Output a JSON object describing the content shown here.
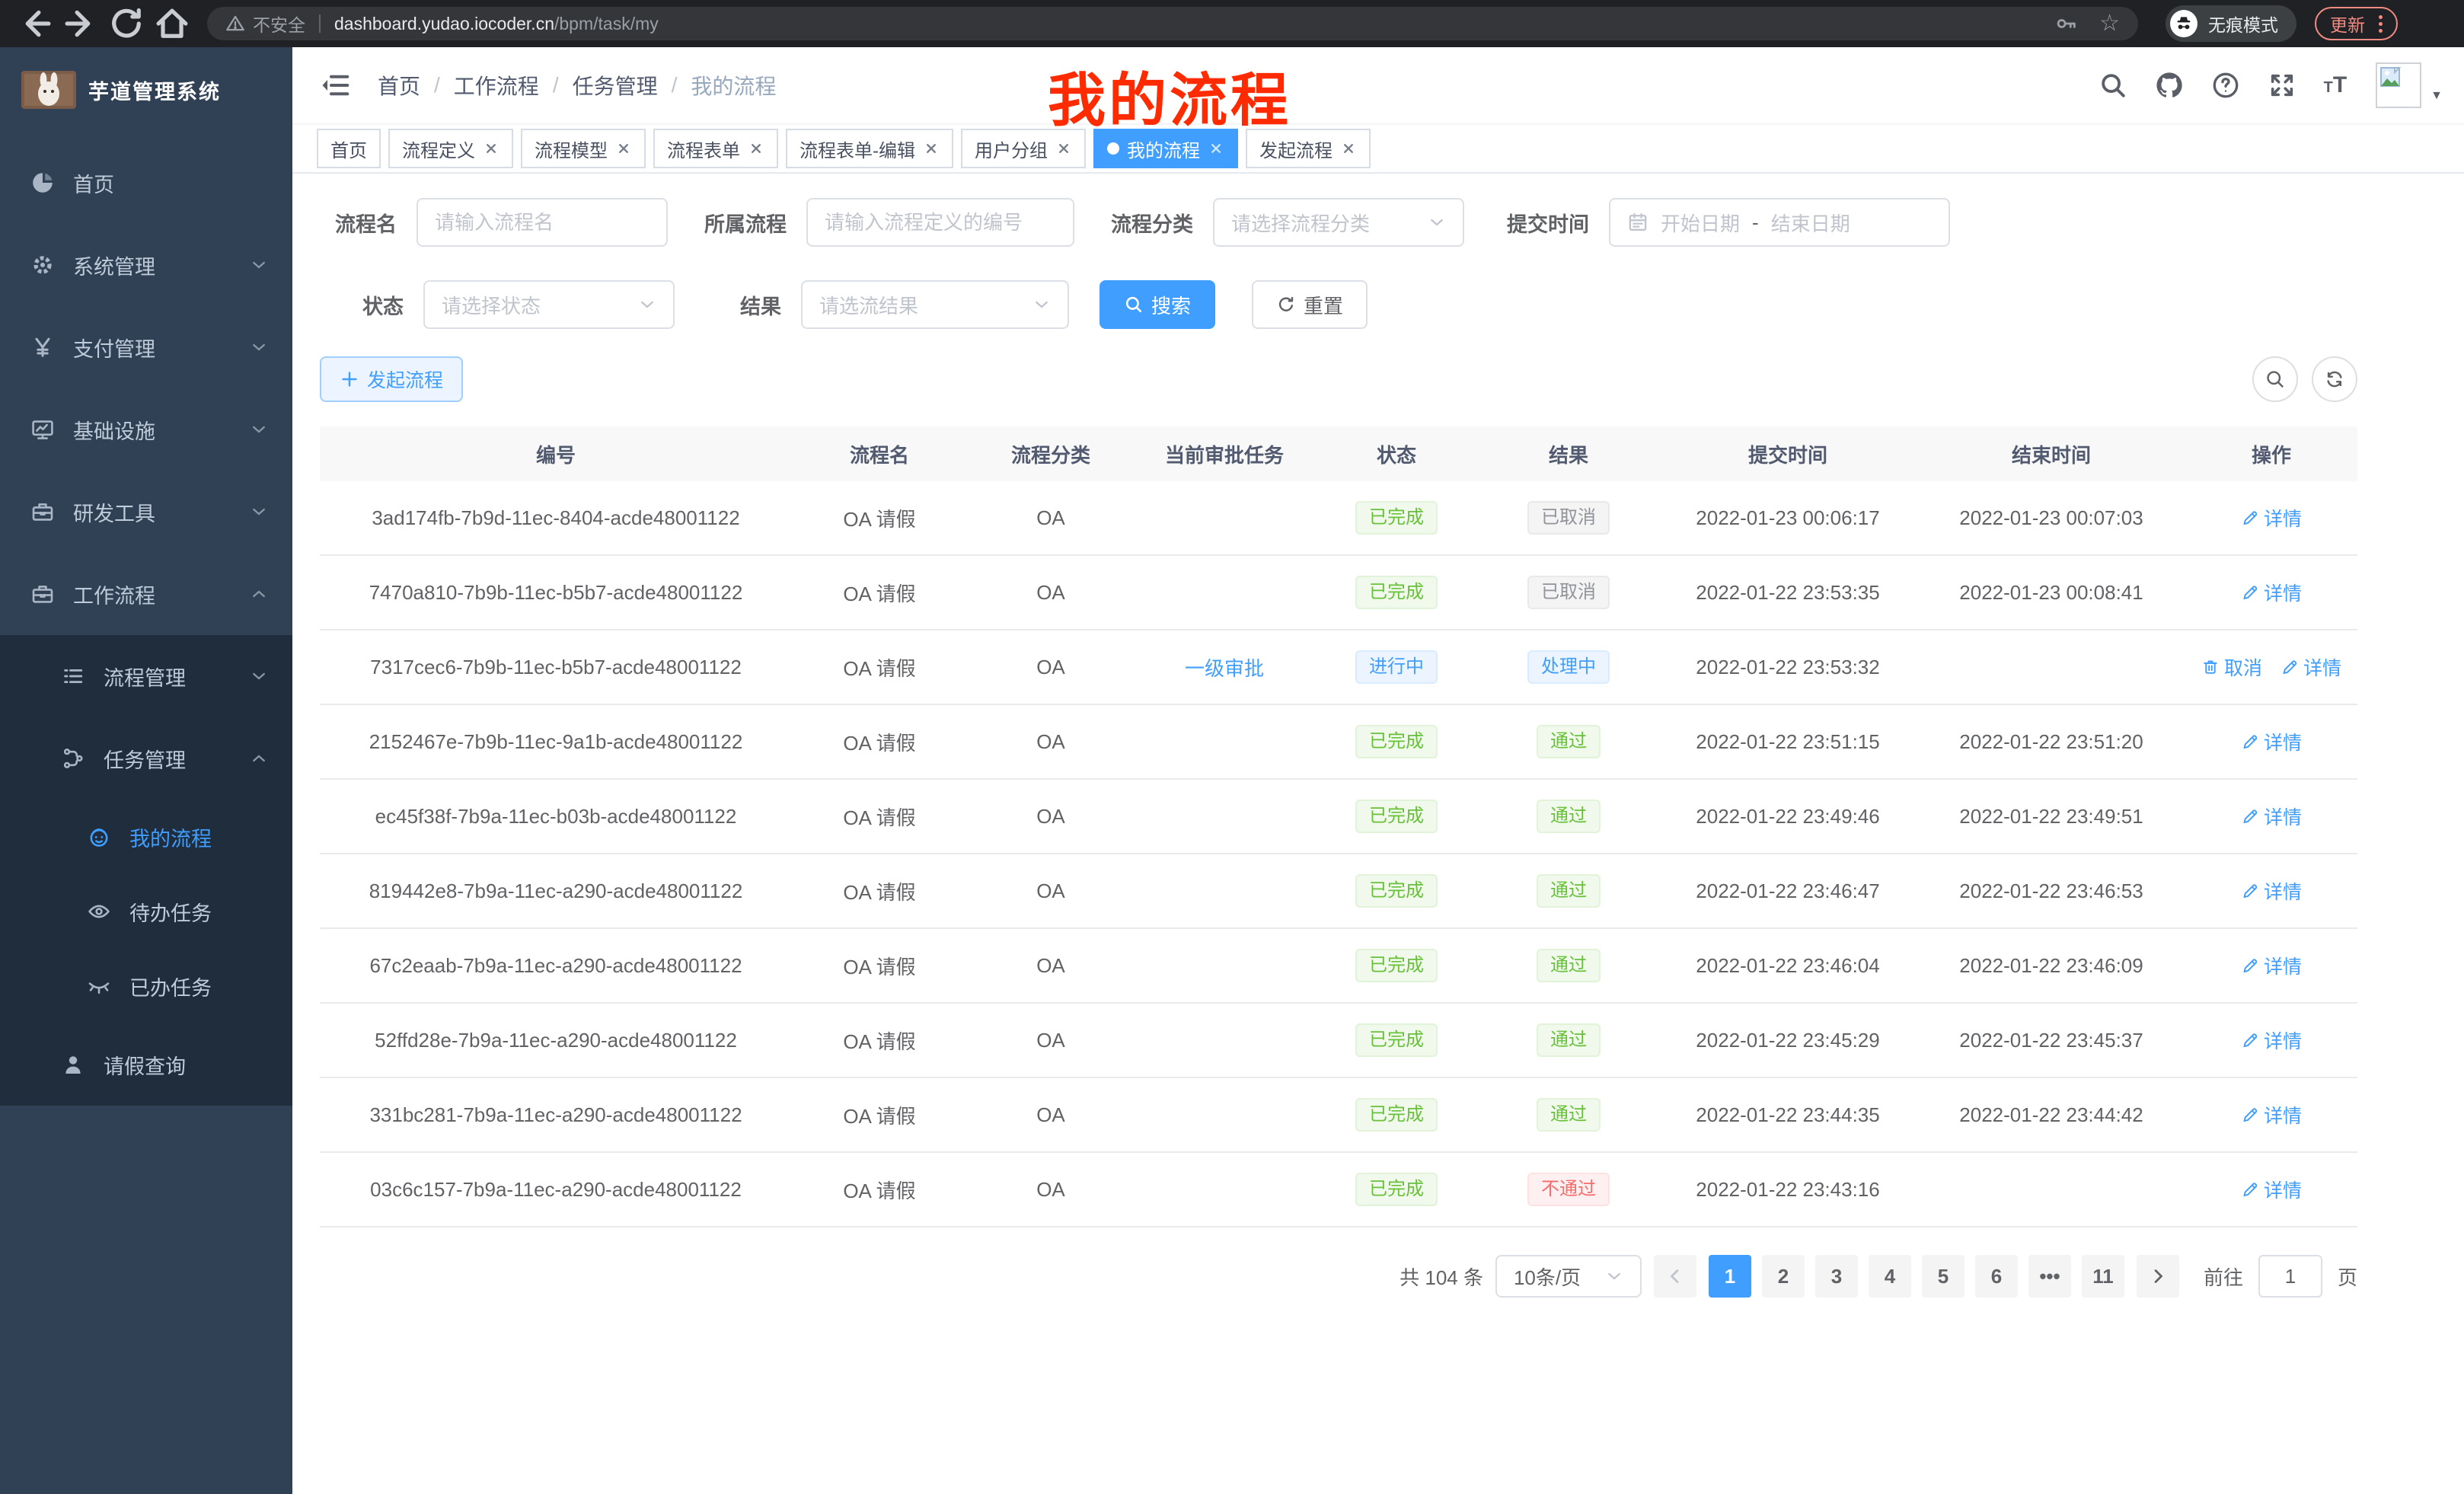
{
  "browser": {
    "security_text": "不安全",
    "url_host": "dashboard.yudao.iocoder.cn",
    "url_path": "/bpm/task/my",
    "incognito_label": "无痕模式",
    "update_label": "更新"
  },
  "sidebar": {
    "title": "芋道管理系统",
    "items": [
      {
        "label": "首页",
        "icon": "dashboard-icon",
        "level": 1,
        "chevron": null,
        "active": false,
        "in_submenu": false
      },
      {
        "label": "系统管理",
        "icon": "gear-icon",
        "level": 1,
        "chevron": "down",
        "active": false,
        "in_submenu": false
      },
      {
        "label": "支付管理",
        "icon": "yen-icon",
        "level": 1,
        "chevron": "down",
        "active": false,
        "in_submenu": false
      },
      {
        "label": "基础设施",
        "icon": "monitor-icon",
        "level": 1,
        "chevron": "down",
        "active": false,
        "in_submenu": false
      },
      {
        "label": "研发工具",
        "icon": "toolbox-icon",
        "level": 1,
        "chevron": "down",
        "active": false,
        "in_submenu": false
      },
      {
        "label": "工作流程",
        "icon": "toolbox-icon",
        "level": 1,
        "chevron": "up",
        "active": false,
        "in_submenu": false
      },
      {
        "label": "流程管理",
        "icon": "list-icon",
        "level": 2,
        "chevron": "down",
        "active": false,
        "in_submenu": true
      },
      {
        "label": "任务管理",
        "icon": "flow-icon",
        "level": 2,
        "chevron": "up",
        "active": false,
        "in_submenu": true
      },
      {
        "label": "我的流程",
        "icon": "face-icon",
        "level": 3,
        "chevron": null,
        "active": true,
        "in_submenu": true
      },
      {
        "label": "待办任务",
        "icon": "eye-icon",
        "level": 3,
        "chevron": null,
        "active": false,
        "in_submenu": true
      },
      {
        "label": "已办任务",
        "icon": "eye-closed-icon",
        "level": 3,
        "chevron": null,
        "active": false,
        "in_submenu": true
      },
      {
        "label": "请假查询",
        "icon": "user-icon",
        "level": 2,
        "chevron": null,
        "active": false,
        "in_submenu": true
      }
    ]
  },
  "header": {
    "breadcrumb": [
      "首页",
      "工作流程",
      "任务管理",
      "我的流程"
    ],
    "overlay_title": "我的流程"
  },
  "tabs": [
    {
      "label": "首页",
      "closable": false,
      "active": false
    },
    {
      "label": "流程定义",
      "closable": true,
      "active": false
    },
    {
      "label": "流程模型",
      "closable": true,
      "active": false
    },
    {
      "label": "流程表单",
      "closable": true,
      "active": false
    },
    {
      "label": "流程表单-编辑",
      "closable": true,
      "active": false
    },
    {
      "label": "用户分组",
      "closable": true,
      "active": false
    },
    {
      "label": "我的流程",
      "closable": true,
      "active": true
    },
    {
      "label": "发起流程",
      "closable": true,
      "active": false
    }
  ],
  "filters": {
    "name_label": "流程名",
    "name_placeholder": "请输入流程名",
    "belong_label": "所属流程",
    "belong_placeholder": "请输入流程定义的编号",
    "category_label": "流程分类",
    "category_placeholder": "请选择流程分类",
    "time_label": "提交时间",
    "date_start_placeholder": "开始日期",
    "date_separator": "-",
    "date_end_placeholder": "结束日期",
    "status_label": "状态",
    "status_placeholder": "请选择状态",
    "result_label": "结果",
    "result_placeholder": "请选流结果",
    "search_label": "搜索",
    "reset_label": "重置"
  },
  "toolbar": {
    "start_label": "发起流程"
  },
  "table": {
    "columns": [
      "编号",
      "流程名",
      "流程分类",
      "当前审批任务",
      "状态",
      "结果",
      "提交时间",
      "结束时间",
      "操作"
    ],
    "rows": [
      {
        "id": "3ad174fb-7b9d-11ec-8404-acde48001122",
        "name": "OA 请假",
        "category": "OA",
        "current_task": "",
        "status": {
          "text": "已完成",
          "type": "success"
        },
        "result": {
          "text": "已取消",
          "type": "info"
        },
        "submit_time": "2022-01-23 00:06:17",
        "end_time": "2022-01-23 00:07:03",
        "actions": [
          {
            "label": "详情",
            "icon": "pencil"
          }
        ]
      },
      {
        "id": "7470a810-7b9b-11ec-b5b7-acde48001122",
        "name": "OA 请假",
        "category": "OA",
        "current_task": "",
        "status": {
          "text": "已完成",
          "type": "success"
        },
        "result": {
          "text": "已取消",
          "type": "info"
        },
        "submit_time": "2022-01-22 23:53:35",
        "end_time": "2022-01-23 00:08:41",
        "actions": [
          {
            "label": "详情",
            "icon": "pencil"
          }
        ]
      },
      {
        "id": "7317cec6-7b9b-11ec-b5b7-acde48001122",
        "name": "OA 请假",
        "category": "OA",
        "current_task": "一级审批",
        "status": {
          "text": "进行中",
          "type": "primary"
        },
        "result": {
          "text": "处理中",
          "type": "primary"
        },
        "submit_time": "2022-01-22 23:53:32",
        "end_time": "",
        "actions": [
          {
            "label": "取消",
            "icon": "trash"
          },
          {
            "label": "详情",
            "icon": "pencil"
          }
        ]
      },
      {
        "id": "2152467e-7b9b-11ec-9a1b-acde48001122",
        "name": "OA 请假",
        "category": "OA",
        "current_task": "",
        "status": {
          "text": "已完成",
          "type": "success"
        },
        "result": {
          "text": "通过",
          "type": "success"
        },
        "submit_time": "2022-01-22 23:51:15",
        "end_time": "2022-01-22 23:51:20",
        "actions": [
          {
            "label": "详情",
            "icon": "pencil"
          }
        ]
      },
      {
        "id": "ec45f38f-7b9a-11ec-b03b-acde48001122",
        "name": "OA 请假",
        "category": "OA",
        "current_task": "",
        "status": {
          "text": "已完成",
          "type": "success"
        },
        "result": {
          "text": "通过",
          "type": "success"
        },
        "submit_time": "2022-01-22 23:49:46",
        "end_time": "2022-01-22 23:49:51",
        "actions": [
          {
            "label": "详情",
            "icon": "pencil"
          }
        ]
      },
      {
        "id": "819442e8-7b9a-11ec-a290-acde48001122",
        "name": "OA 请假",
        "category": "OA",
        "current_task": "",
        "status": {
          "text": "已完成",
          "type": "success"
        },
        "result": {
          "text": "通过",
          "type": "success"
        },
        "submit_time": "2022-01-22 23:46:47",
        "end_time": "2022-01-22 23:46:53",
        "actions": [
          {
            "label": "详情",
            "icon": "pencil"
          }
        ]
      },
      {
        "id": "67c2eaab-7b9a-11ec-a290-acde48001122",
        "name": "OA 请假",
        "category": "OA",
        "current_task": "",
        "status": {
          "text": "已完成",
          "type": "success"
        },
        "result": {
          "text": "通过",
          "type": "success"
        },
        "submit_time": "2022-01-22 23:46:04",
        "end_time": "2022-01-22 23:46:09",
        "actions": [
          {
            "label": "详情",
            "icon": "pencil"
          }
        ]
      },
      {
        "id": "52ffd28e-7b9a-11ec-a290-acde48001122",
        "name": "OA 请假",
        "category": "OA",
        "current_task": "",
        "status": {
          "text": "已完成",
          "type": "success"
        },
        "result": {
          "text": "通过",
          "type": "success"
        },
        "submit_time": "2022-01-22 23:45:29",
        "end_time": "2022-01-22 23:45:37",
        "actions": [
          {
            "label": "详情",
            "icon": "pencil"
          }
        ]
      },
      {
        "id": "331bc281-7b9a-11ec-a290-acde48001122",
        "name": "OA 请假",
        "category": "OA",
        "current_task": "",
        "status": {
          "text": "已完成",
          "type": "success"
        },
        "result": {
          "text": "通过",
          "type": "success"
        },
        "submit_time": "2022-01-22 23:44:35",
        "end_time": "2022-01-22 23:44:42",
        "actions": [
          {
            "label": "详情",
            "icon": "pencil"
          }
        ]
      },
      {
        "id": "03c6c157-7b9a-11ec-a290-acde48001122",
        "name": "OA 请假",
        "category": "OA",
        "current_task": "",
        "status": {
          "text": "已完成",
          "type": "success"
        },
        "result": {
          "text": "不通过",
          "type": "danger"
        },
        "submit_time": "2022-01-22 23:43:16",
        "end_time": "",
        "actions": [
          {
            "label": "详情",
            "icon": "pencil"
          }
        ]
      }
    ]
  },
  "pagination": {
    "total_label": "共 104 条",
    "page_size": "10条/页",
    "pages": [
      {
        "label": "1",
        "active": true
      },
      {
        "label": "2",
        "active": false
      },
      {
        "label": "3",
        "active": false
      },
      {
        "label": "4",
        "active": false
      },
      {
        "label": "5",
        "active": false
      },
      {
        "label": "6",
        "active": false
      },
      {
        "label": "•••",
        "active": false,
        "more": true
      },
      {
        "label": "11",
        "active": false
      }
    ],
    "goto_label": "前往",
    "goto_value": "1",
    "goto_suffix": "页"
  }
}
